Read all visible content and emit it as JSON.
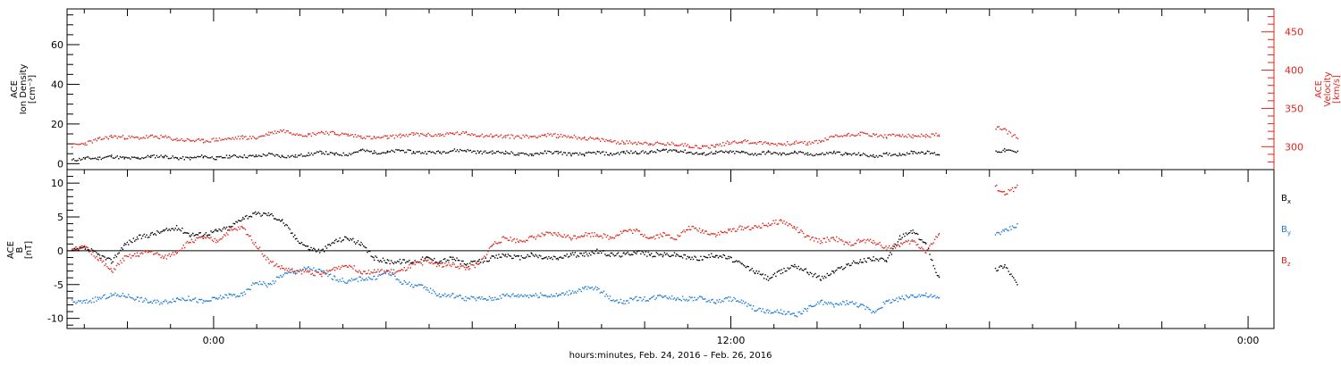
{
  "chart_data": [
    {
      "type": "scatter",
      "panel": "top",
      "ylabel_left": [
        "ACE",
        "Ion Density",
        "[cm⁻³]"
      ],
      "ylabel_right": [
        "ACE",
        "Velocity",
        "[km/s]"
      ],
      "ylim_left": [
        -3,
        78
      ],
      "ylim_right": [
        270,
        480
      ],
      "yticks_left": [
        0,
        20,
        40,
        60
      ],
      "yticks_right": [
        300,
        350,
        400,
        450
      ],
      "colors": {
        "density": "#000000",
        "velocity": "#e0241c"
      },
      "series": [
        {
          "name": "",
          "axis": "left",
          "color": "#000000",
          "x_hours": [
            -17,
            -15,
            -13,
            -11,
            -9,
            -7,
            -5,
            -3,
            -1,
            1,
            3,
            5,
            7,
            9,
            11,
            13,
            15,
            17,
            19,
            21,
            23,
            25,
            27,
            29,
            31,
            33,
            35,
            37,
            39,
            41,
            43,
            45,
            47,
            49,
            51,
            53,
            55,
            57,
            59,
            61,
            63,
            65,
            67,
            69,
            71,
            73,
            75,
            77,
            79,
            81,
            83,
            85,
            87,
            89,
            91,
            93,
            95,
            97,
            99,
            101,
            103,
            105,
            107,
            109,
            111,
            113,
            115,
            117,
            119,
            121,
            123,
            125,
            127
          ],
          "values": [
            2,
            3,
            3,
            4,
            3,
            3,
            4,
            4,
            3,
            3,
            4,
            3,
            4,
            4,
            4,
            5,
            4,
            4,
            5,
            6,
            5,
            5,
            7,
            6,
            6,
            7,
            6,
            6,
            6,
            7,
            7,
            6,
            6,
            6,
            5,
            5,
            6,
            6,
            5,
            5,
            6,
            5,
            6,
            6,
            6,
            7,
            7,
            6,
            5,
            6,
            6,
            6,
            5,
            6,
            5,
            6,
            5,
            5,
            6,
            5,
            5,
            4,
            5,
            5,
            6,
            6,
            5,
            6,
            6,
            6,
            6,
            7,
            6
          ]
        },
        {
          "name": "",
          "axis": "right",
          "color": "#e0241c",
          "x_hours": [
            -17,
            -15,
            -13,
            -11,
            -9,
            -7,
            -5,
            -3,
            -1,
            1,
            3,
            5,
            7,
            9,
            11,
            13,
            15,
            17,
            19,
            21,
            23,
            25,
            27,
            29,
            31,
            33,
            35,
            37,
            39,
            41,
            43,
            45,
            47,
            49,
            51,
            53,
            55,
            57,
            59,
            61,
            63,
            65,
            67,
            69,
            71,
            73,
            75,
            77,
            79,
            81,
            83,
            85,
            87,
            89,
            91,
            93,
            95,
            97,
            99,
            101,
            103,
            105,
            107,
            109,
            111,
            113,
            115,
            117,
            119,
            121,
            123,
            125,
            127
          ],
          "values": [
            302,
            305,
            310,
            314,
            313,
            312,
            314,
            313,
            310,
            309,
            308,
            310,
            311,
            313,
            312,
            318,
            322,
            318,
            316,
            320,
            318,
            316,
            314,
            312,
            313,
            315,
            317,
            316,
            316,
            318,
            318,
            316,
            315,
            314,
            314,
            314,
            316,
            315,
            314,
            312,
            310,
            308,
            306,
            306,
            305,
            304,
            304,
            302,
            300,
            302,
            306,
            308,
            306,
            305,
            304,
            306,
            305,
            308,
            314,
            316,
            318,
            316,
            314,
            316,
            314,
            315,
            316,
            314,
            313,
            325,
            328,
            322,
            312
          ]
        }
      ]
    },
    {
      "type": "scatter",
      "panel": "bottom",
      "ylabel": [
        "ACE",
        "B",
        "[nT]"
      ],
      "ylim": [
        -11.5,
        12
      ],
      "yticks": [
        -10,
        -5,
        0,
        5,
        10
      ],
      "legend": [
        {
          "label": "B",
          "sub": "x",
          "color": "#000000"
        },
        {
          "label": "B",
          "sub": "y",
          "color": "#1c7ad6"
        },
        {
          "label": "B",
          "sub": "z",
          "color": "#e0241c"
        }
      ],
      "series": [
        {
          "name": "Bx",
          "color": "#000000",
          "x_hours": [
            -17,
            -15,
            -13,
            -11,
            -9,
            -7,
            -5,
            -3,
            -1,
            1,
            3,
            5,
            7,
            9,
            11,
            13,
            15,
            17,
            19,
            21,
            23,
            25,
            27,
            29,
            31,
            33,
            35,
            37,
            39,
            41,
            43,
            45,
            47,
            49,
            51,
            53,
            55,
            57,
            59,
            61,
            63,
            65,
            67,
            69,
            71,
            73,
            75,
            77,
            79,
            81,
            83,
            85,
            87,
            89,
            91,
            93,
            95,
            97,
            99,
            101,
            103,
            105,
            107,
            109,
            111,
            113,
            115,
            117,
            119,
            121,
            123,
            125,
            127
          ],
          "values": [
            0,
            0.5,
            -0.5,
            -1.5,
            1,
            2,
            2.5,
            3,
            3.5,
            2.5,
            2.5,
            3,
            3.5,
            5,
            5.5,
            5.5,
            4.5,
            2,
            0.5,
            0,
            1.5,
            2,
            1,
            -1,
            -1.5,
            -1.5,
            -1.5,
            -1,
            -1.5,
            -1,
            -2,
            -1.5,
            -1,
            -0.5,
            -1,
            -0.5,
            -1,
            -1,
            -0.5,
            -0.5,
            0,
            -0.5,
            -0.5,
            0,
            -0.5,
            -0.5,
            -0.5,
            -1,
            -1,
            -0.5,
            -1,
            -2,
            -3,
            -4,
            -3,
            -2,
            -3,
            -4,
            -3,
            -2,
            -1.5,
            -1,
            -1.5,
            2,
            3,
            1,
            -4,
            -7,
            -6,
            -6.5,
            -3,
            -2,
            -5
          ]
        },
        {
          "name": "By",
          "color": "#1c7ad6",
          "x_hours": [
            -17,
            -15,
            -13,
            -11,
            -9,
            -7,
            -5,
            -3,
            -1,
            1,
            3,
            5,
            7,
            9,
            11,
            13,
            15,
            17,
            19,
            21,
            23,
            25,
            27,
            29,
            31,
            33,
            35,
            37,
            39,
            41,
            43,
            45,
            47,
            49,
            51,
            53,
            55,
            57,
            59,
            61,
            63,
            65,
            67,
            69,
            71,
            73,
            75,
            77,
            79,
            81,
            83,
            85,
            87,
            89,
            91,
            93,
            95,
            97,
            99,
            101,
            103,
            105,
            107,
            109,
            111,
            113,
            115,
            117,
            119,
            121,
            123,
            125,
            127
          ],
          "values": [
            -7.5,
            -7.5,
            -7,
            -6.5,
            -6.5,
            -7,
            -7.5,
            -7.5,
            -7,
            -7,
            -7.5,
            -7,
            -6.5,
            -6.5,
            -4.5,
            -5,
            -3.5,
            -3,
            -2.5,
            -3,
            -4,
            -4.5,
            -4,
            -4,
            -3,
            -4.5,
            -5,
            -5.5,
            -6.5,
            -6.5,
            -7,
            -7,
            -7,
            -6.5,
            -6.5,
            -6.5,
            -6.5,
            -6.5,
            -6,
            -5.5,
            -5.5,
            -7,
            -7.5,
            -7,
            -7,
            -6.5,
            -7,
            -7,
            -7,
            -7.5,
            -7,
            -7.5,
            -8.5,
            -9,
            -9,
            -9.5,
            -8.5,
            -7.5,
            -8,
            -7.5,
            -8,
            -9,
            -7.5,
            -7,
            -6.5,
            -6.5,
            -7,
            -6.5,
            -6.5,
            -7,
            2.5,
            3,
            4
          ]
        },
        {
          "name": "Bz",
          "color": "#e0241c",
          "x_hours": [
            -17,
            -15,
            -13,
            -11,
            -9,
            -7,
            -5,
            -3,
            -1,
            1,
            3,
            5,
            7,
            9,
            11,
            13,
            15,
            17,
            19,
            21,
            23,
            25,
            27,
            29,
            31,
            33,
            35,
            37,
            39,
            41,
            43,
            45,
            47,
            49,
            51,
            53,
            55,
            57,
            59,
            61,
            63,
            65,
            67,
            69,
            71,
            73,
            75,
            77,
            79,
            81,
            83,
            85,
            87,
            89,
            91,
            93,
            95,
            97,
            99,
            101,
            103,
            105,
            107,
            109,
            111,
            113,
            115,
            117,
            119,
            121,
            123,
            125,
            127
          ],
          "values": [
            0.5,
            0.5,
            -1,
            -3,
            -1,
            -0.5,
            0,
            -1,
            0,
            1.5,
            2,
            1.5,
            3,
            3.5,
            1,
            -1.5,
            -2.5,
            -3,
            -3,
            -3.5,
            -2.5,
            -2,
            -3,
            -3,
            -3,
            -3,
            -2,
            -1.5,
            -2,
            -2,
            -2.5,
            -2,
            1,
            2,
            1.5,
            2,
            2.5,
            2.5,
            2,
            2.5,
            2.5,
            2,
            3,
            3,
            2,
            2.5,
            2,
            3.5,
            3,
            2.5,
            3,
            3.5,
            3.5,
            4,
            4.5,
            3.5,
            2,
            1.5,
            2,
            1,
            1.5,
            1.5,
            0.5,
            1,
            1.5,
            0,
            2.5,
            3,
            3,
            3.5,
            10,
            8.5,
            9.5
          ]
        }
      ]
    }
  ],
  "xaxis": {
    "label": "hours:minutes, Feb. 24, 2016 – Feb. 26, 2016",
    "tick_labels": [
      "0:00",
      "12:00",
      "0:00"
    ],
    "label_hours": [
      0,
      12,
      24
    ],
    "range_hours": [
      -3.4,
      24.6
    ]
  }
}
